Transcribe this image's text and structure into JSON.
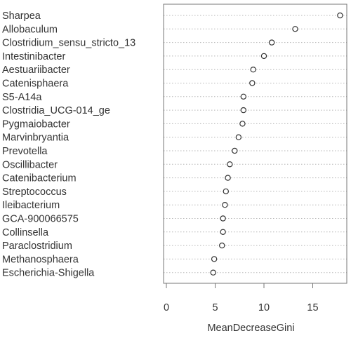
{
  "chart_data": {
    "type": "scatter",
    "variant": "dotchart",
    "xlabel": "MeanDecreaseGini",
    "xlim": [
      0,
      18
    ],
    "xticks": [
      0,
      5,
      10,
      15
    ],
    "grid": "dotted horizontal guide lines",
    "marker": "open circle",
    "categories": [
      "Sharpea",
      "Allobaculum",
      "Clostridium_sensu_stricto_13",
      "Intestinibacter",
      "Aestuariibacter",
      "Catenisphaera",
      "S5-A14a",
      "Clostridia_UCG-014_ge",
      "Pygmaiobacter",
      "Marvinbryantia",
      "Prevotella",
      "Oscillibacter",
      "Catenibacterium",
      "Streptococcus",
      "Ileibacterium",
      "GCA-900066575",
      "Collinsella",
      "Paraclostridium",
      "Methanosphaera",
      "Escherichia-Shigella"
    ],
    "values": [
      17.8,
      13.2,
      10.8,
      10.0,
      8.9,
      8.8,
      7.9,
      7.9,
      7.8,
      7.4,
      7.0,
      6.5,
      6.3,
      6.1,
      6.0,
      5.8,
      5.8,
      5.7,
      4.9,
      4.8
    ]
  }
}
